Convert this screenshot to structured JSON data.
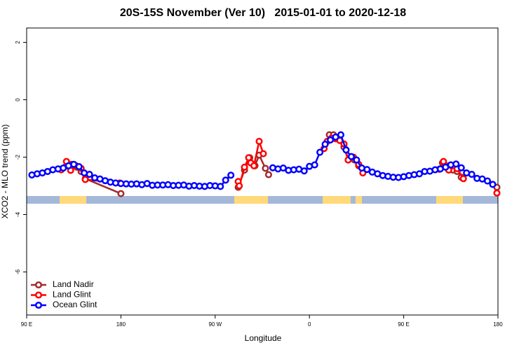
{
  "chart_data": {
    "type": "line",
    "title": "20S-15S November (Ver 10)   2015-01-01 to 2020-12-18",
    "x_label": "Longitude",
    "y_label": "XCO2 - MLO trend (ppm)",
    "xlim": [
      90,
      540
    ],
    "ylim": [
      -7.5,
      2.5
    ],
    "xticks": [
      {
        "value": 90,
        "label": "90 E"
      },
      {
        "value": 180,
        "label": "180"
      },
      {
        "value": 270,
        "label": "90 W"
      },
      {
        "value": 360,
        "label": "0"
      },
      {
        "value": 450,
        "label": "90 E"
      },
      {
        "value": 540,
        "label": "180"
      }
    ],
    "yticks": [
      2,
      0,
      -2,
      -4,
      -6
    ],
    "legend": "bottom-left",
    "series": [
      {
        "name": "Land Nadir",
        "color": "#a52a2a",
        "x": [
          123,
          128,
          133,
          138,
          142,
          146,
          180,
          null,
          292,
          298,
          303,
          308,
          312,
          318,
          321,
          null,
          379,
          383,
          388,
          393,
          397,
          403,
          407,
          null,
          487,
          493,
          497,
          501,
          505,
          null,
          539
        ],
        "values": [
          -2.42,
          -2.3,
          -2.25,
          -2.35,
          -2.5,
          -2.75,
          -3.27,
          null,
          -3.05,
          -2.45,
          -2.02,
          -2.3,
          -1.93,
          -2.39,
          -2.61,
          null,
          -1.22,
          -1.22,
          -1.38,
          -1.65,
          -2.1,
          -2.1,
          -2.3,
          null,
          -2.2,
          -2.3,
          -2.45,
          -2.5,
          -2.7,
          null,
          -3.05
        ]
      },
      {
        "name": "Land Glint",
        "color": "#ff0000",
        "x": [
          123,
          128,
          132,
          137,
          142,
          146,
          179,
          null,
          292,
          293,
          298,
          302,
          304,
          307,
          312,
          316,
          null,
          374,
          377,
          381,
          385,
          389,
          393,
          397,
          402,
          407,
          411,
          null,
          484,
          488,
          493,
          497,
          501,
          507,
          null,
          539
        ],
        "values": [
          -2.44,
          -2.15,
          -2.46,
          -2.3,
          -2.39,
          -2.78,
          -2.9,
          null,
          -2.85,
          -3.0,
          -2.35,
          -2.02,
          -2.2,
          -2.3,
          -1.45,
          -1.88,
          null,
          -1.7,
          -1.45,
          -1.34,
          -1.36,
          -1.42,
          -1.54,
          -2.1,
          -2.0,
          -2.25,
          -2.55,
          null,
          -2.42,
          -2.15,
          -2.45,
          -2.3,
          -2.4,
          -2.75,
          null,
          -3.25
        ]
      },
      {
        "name": "Ocean Glint",
        "color": "#0000ff",
        "x": [
          95,
          100,
          105,
          110,
          115,
          120,
          125,
          130,
          135,
          140,
          145,
          150,
          155,
          160,
          165,
          170,
          175,
          180,
          185,
          190,
          195,
          200,
          205,
          210,
          215,
          220,
          225,
          230,
          235,
          240,
          245,
          250,
          255,
          260,
          265,
          270,
          275,
          280,
          285,
          null,
          325,
          330,
          335,
          340,
          345,
          350,
          355,
          360,
          365,
          370,
          375,
          380,
          385,
          390,
          395,
          400,
          405,
          410,
          415,
          420,
          425,
          430,
          435,
          440,
          445,
          450,
          455,
          460,
          465,
          470,
          475,
          480,
          485,
          490,
          495,
          500,
          505,
          510,
          515,
          520,
          525,
          530,
          535
        ],
        "values": [
          -2.62,
          -2.58,
          -2.55,
          -2.5,
          -2.44,
          -2.41,
          -2.38,
          -2.3,
          -2.25,
          -2.33,
          -2.55,
          -2.6,
          -2.72,
          -2.76,
          -2.82,
          -2.87,
          -2.9,
          -2.92,
          -2.93,
          -2.94,
          -2.93,
          -2.96,
          -2.92,
          -2.98,
          -2.97,
          -2.97,
          -2.96,
          -2.99,
          -2.98,
          -2.97,
          -3.01,
          -2.99,
          -3.01,
          -3.02,
          -2.99,
          -3.0,
          -3.02,
          -2.8,
          -2.63,
          null,
          -2.37,
          -2.41,
          -2.38,
          -2.46,
          -2.44,
          -2.42,
          -2.48,
          -2.32,
          -2.27,
          -1.83,
          -1.55,
          -1.4,
          -1.3,
          -1.22,
          -1.75,
          -1.98,
          -2.1,
          -2.38,
          -2.43,
          -2.52,
          -2.58,
          -2.64,
          -2.67,
          -2.7,
          -2.71,
          -2.68,
          -2.64,
          -2.61,
          -2.58,
          -2.5,
          -2.49,
          -2.44,
          -2.41,
          -2.35,
          -2.27,
          -2.24,
          -2.37,
          -2.55,
          -2.6,
          -2.74,
          -2.76,
          -2.83,
          -2.95
        ]
      }
    ]
  }
}
